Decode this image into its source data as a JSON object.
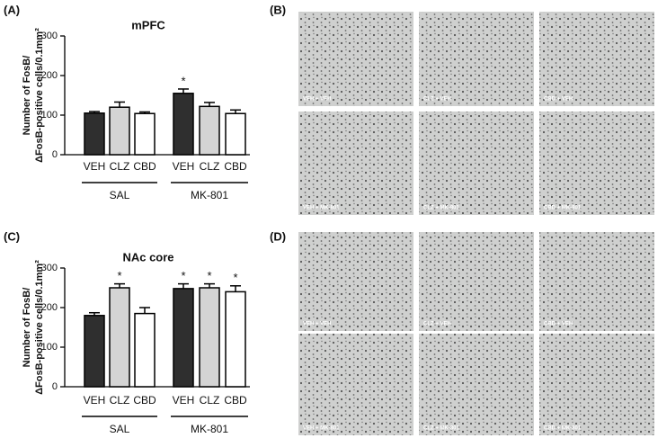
{
  "panels": [
    "(A)",
    "(B)",
    "(C)",
    "(D)"
  ],
  "chart_data": [
    {
      "type": "bar",
      "title": "mPFC",
      "ylabel": [
        "Number of FosB/",
        "ΔFosB-positive cells/0.1mm²"
      ],
      "categories": [
        "VEH",
        "CLZ",
        "CBD",
        "VEH",
        "CLZ",
        "CBD"
      ],
      "groups": [
        "SAL",
        "MK-801"
      ],
      "values": [
        105,
        120,
        104,
        155,
        122,
        104
      ],
      "errors": [
        4,
        13,
        4,
        11,
        10,
        9
      ],
      "markers": [
        null,
        null,
        null,
        "*",
        null,
        null
      ],
      "colors": [
        "#2f2f2f",
        "#d4d4d4",
        "#ffffff",
        "#2f2f2f",
        "#d4d4d4",
        "#ffffff"
      ],
      "ylim": [
        0,
        300
      ],
      "yticks": [
        0,
        100,
        200,
        300
      ]
    },
    {
      "type": "bar",
      "title": "NAc core",
      "ylabel": [
        "Number of FosB/",
        "ΔFosB-positive cells/0.1mm²"
      ],
      "categories": [
        "VEH",
        "CLZ",
        "CBD",
        "VEH",
        "CLZ",
        "CBD"
      ],
      "groups": [
        "SAL",
        "MK-801"
      ],
      "values": [
        180,
        250,
        185,
        248,
        250,
        240
      ],
      "errors": [
        7,
        10,
        15,
        12,
        10,
        15
      ],
      "markers": [
        null,
        "*",
        null,
        "*",
        "*",
        "*"
      ],
      "colors": [
        "#2f2f2f",
        "#d4d4d4",
        "#ffffff",
        "#2f2f2f",
        "#d4d4d4",
        "#ffffff"
      ],
      "ylim": [
        0,
        300
      ],
      "yticks": [
        0,
        100,
        200,
        300
      ]
    }
  ],
  "micrographs": {
    "B": [
      "VEH + VEH",
      "CLZ + VEH",
      "CBD + VEH",
      "VEH + MK-801",
      "CLZ + MK-801",
      "CBD + MK-801"
    ],
    "D": [
      "VEH + VEH",
      "CLZ + VEH",
      "CBD + VEH",
      "VEH + MK-801",
      "CLZ + MK-801",
      "CBD + MK-801"
    ]
  }
}
